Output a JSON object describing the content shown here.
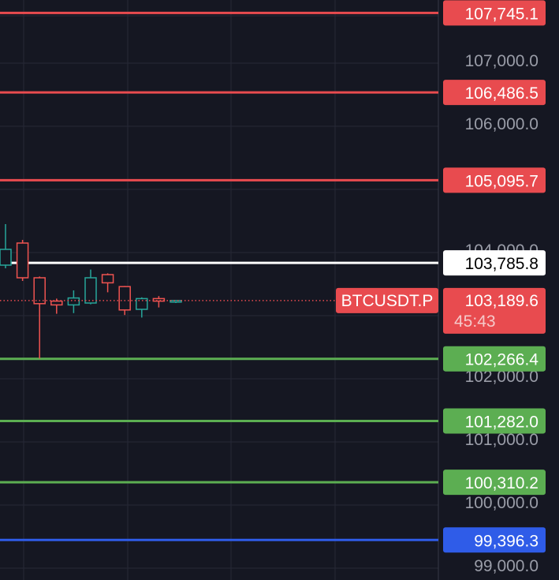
{
  "chart_data": {
    "type": "candlestick",
    "symbol": "BTCUSDT.P",
    "countdown": "45:43",
    "current_price": 103189.6,
    "current_price_label": "103,189.6",
    "y_ticks": [
      "99,000.0",
      "100,000.0",
      "101,000.0",
      "102,000.0",
      "104,000.0",
      "106,000.0",
      "107,000.0"
    ],
    "y_tick_values": [
      99000,
      100000,
      101000,
      102000,
      104000,
      106000,
      107000
    ],
    "levels": [
      {
        "value": 107745.1,
        "label": "107,745.1",
        "color": "#e84b4f",
        "text_color": "#ffffff"
      },
      {
        "value": 106486.5,
        "label": "106,486.5",
        "color": "#e84b4f",
        "text_color": "#ffffff"
      },
      {
        "value": 105095.7,
        "label": "105,095.7",
        "color": "#e84b4f",
        "text_color": "#ffffff"
      },
      {
        "value": 103785.8,
        "label": "103,785.8",
        "color": "#ffffff",
        "text_color": "#000000"
      },
      {
        "value": 102266.4,
        "label": "102,266.4",
        "color": "#5cae52",
        "text_color": "#ffffff"
      },
      {
        "value": 101282.0,
        "label": "101,282.0",
        "color": "#5cae52",
        "text_color": "#ffffff"
      },
      {
        "value": 100310.2,
        "label": "100,310.2",
        "color": "#5cae52",
        "text_color": "#ffffff"
      },
      {
        "value": 99396.3,
        "label": "99,396.3",
        "color": "#2f5ce8",
        "text_color": "#ffffff"
      }
    ],
    "candles": [
      {
        "open": 103750,
        "high": 104400,
        "low": 103700,
        "close": 104000
      },
      {
        "open": 104100,
        "high": 104150,
        "low": 103500,
        "close": 103550
      },
      {
        "open": 103550,
        "high": 103570,
        "low": 102270,
        "close": 103140
      },
      {
        "open": 103180,
        "high": 103220,
        "low": 102980,
        "close": 103120
      },
      {
        "open": 103120,
        "high": 103350,
        "low": 102990,
        "close": 103230
      },
      {
        "open": 103150,
        "high": 103680,
        "low": 103130,
        "close": 103550
      },
      {
        "open": 103600,
        "high": 103620,
        "low": 103320,
        "close": 103470
      },
      {
        "open": 103410,
        "high": 103420,
        "low": 102960,
        "close": 103040
      },
      {
        "open": 103050,
        "high": 103240,
        "low": 102920,
        "close": 103220
      },
      {
        "open": 103220,
        "high": 103260,
        "low": 103080,
        "close": 103180
      },
      {
        "open": 103190,
        "high": 103200,
        "low": 103150,
        "close": 103190
      }
    ],
    "colors": {
      "up": "#26a69a",
      "down": "#ef5350",
      "price_badge": "#e84b4f",
      "grid": "#262936",
      "axis_border": "#363a45"
    }
  }
}
